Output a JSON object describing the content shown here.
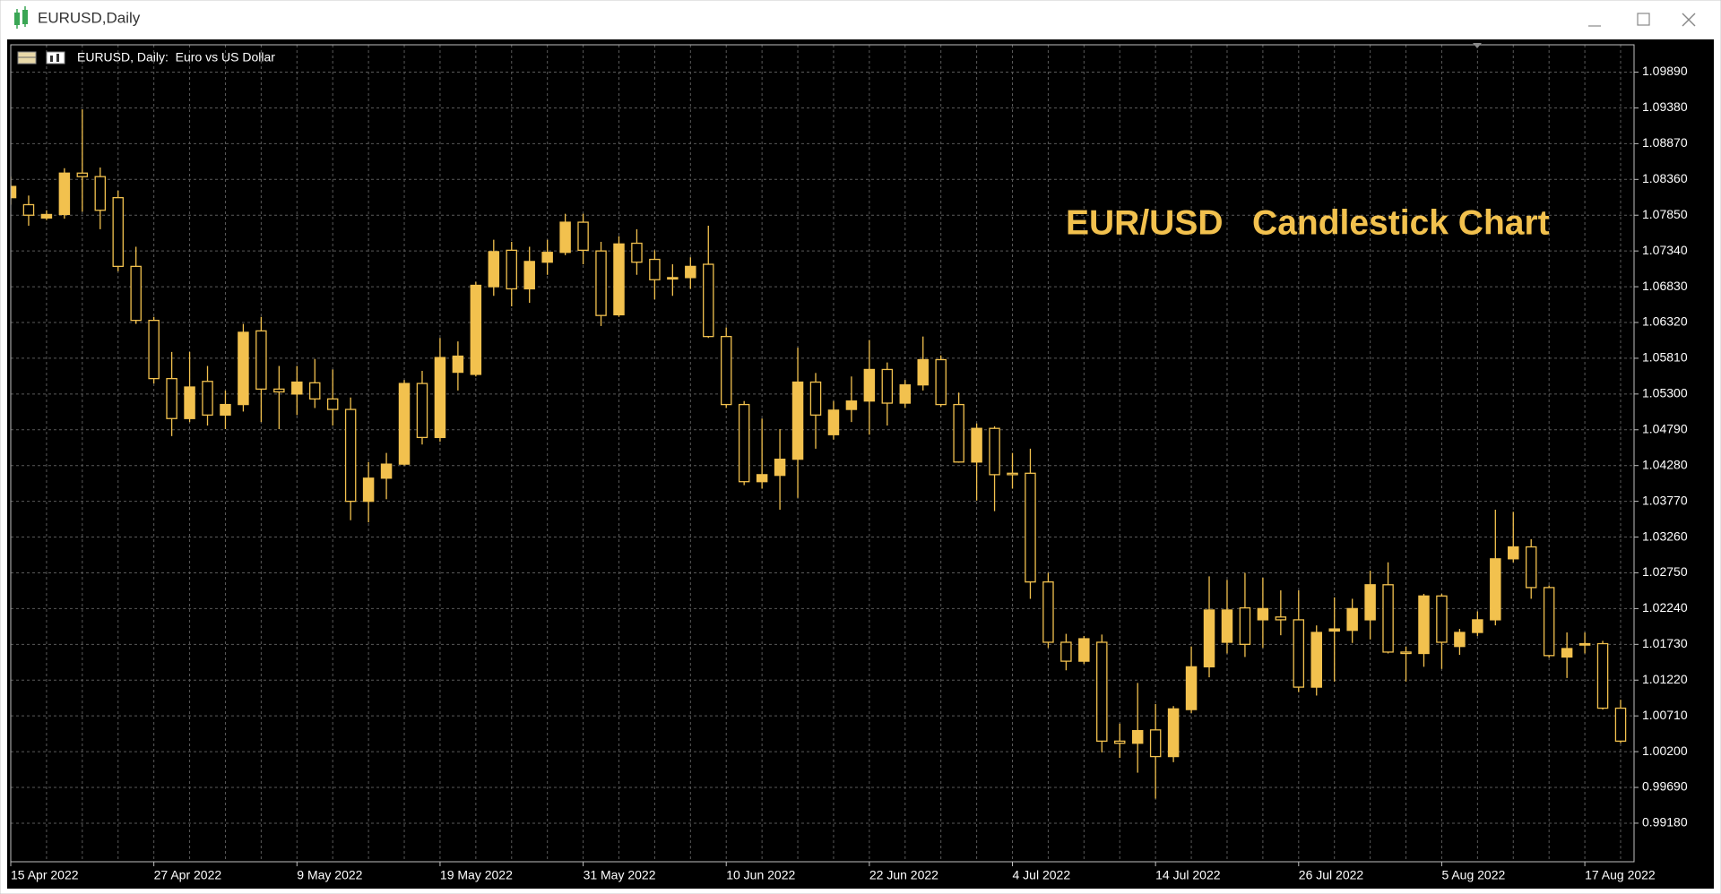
{
  "window_title": "EURUSD,Daily",
  "chart_data": {
    "type": "candlestick",
    "title": "EUR/USD   Candlestick Chart",
    "subtitle": "EURUSD, Daily:  Euro vs US Dollar",
    "color": "#f2c14e",
    "grid": true,
    "categories": [
      "15 Apr 2022",
      null,
      null,
      null,
      null,
      null,
      null,
      null,
      "27 Apr 2022",
      null,
      null,
      null,
      null,
      null,
      null,
      null,
      "9 May 2022",
      null,
      null,
      null,
      null,
      null,
      null,
      null,
      "19 May 2022",
      null,
      null,
      null,
      null,
      null,
      null,
      null,
      "31 May 2022",
      null,
      null,
      null,
      null,
      null,
      null,
      null,
      "10 Jun 2022",
      null,
      null,
      null,
      null,
      null,
      null,
      null,
      "22 Jun 2022",
      null,
      null,
      null,
      null,
      null,
      null,
      null,
      "4 Jul 2022",
      null,
      null,
      null,
      null,
      null,
      null,
      null,
      "14 Jul 2022",
      null,
      null,
      null,
      null,
      null,
      null,
      null,
      "26 Jul 2022",
      null,
      null,
      null,
      null,
      null,
      null,
      null,
      "5 Aug 2022",
      null,
      null,
      null,
      null,
      null,
      null,
      null,
      "17 Aug 2022",
      null,
      null
    ],
    "open": [
      1.081,
      1.08,
      1.0781,
      1.0786,
      1.0845,
      1.084,
      1.081,
      1.0712,
      1.0635,
      1.0552,
      1.0495,
      1.0548,
      1.05,
      1.0515,
      1.062,
      1.0537,
      1.053,
      1.0546,
      1.0523,
      1.0508,
      1.0377,
      1.041,
      1.043,
      1.0545,
      1.0468,
      1.0561,
      1.0558,
      1.0683,
      1.0735,
      1.068,
      1.0718,
      1.0732,
      1.0775,
      1.0734,
      1.0643,
      1.0745,
      1.0722,
      1.0694,
      1.0696,
      1.0715,
      1.0612,
      1.0515,
      1.0405,
      1.0414,
      1.0437,
      1.0547,
      1.0472,
      1.0508,
      1.052,
      1.0565,
      1.0517,
      1.0543,
      1.0579,
      1.0515,
      1.0433,
      1.0481,
      1.0417,
      1.0417,
      1.0262,
      1.0176,
      1.0149,
      1.0176,
      1.0035,
      1.0032,
      1.0051,
      1.0013,
      1.008,
      1.0141,
      1.0176,
      1.0225,
      1.0208,
      1.0212,
      1.0208,
      1.0112,
      1.0192,
      1.0193,
      1.0208,
      1.0258,
      1.0162,
      1.016,
      1.0242,
      1.017,
      1.019,
      1.0208,
      1.0295,
      1.0312,
      1.0254,
      1.0155,
      1.0172,
      1.0174,
      1.0082
    ],
    "high": [
      1.084,
      1.0813,
      1.0792,
      1.0852,
      1.0936,
      1.0853,
      1.082,
      1.074,
      1.064,
      1.059,
      1.059,
      1.057,
      1.0535,
      1.063,
      1.064,
      1.057,
      1.057,
      1.058,
      1.0565,
      1.0525,
      1.0433,
      1.0446,
      1.055,
      1.0563,
      1.061,
      1.0605,
      1.069,
      1.075,
      1.0747,
      1.074,
      1.075,
      1.0787,
      1.0787,
      1.0747,
      1.0755,
      1.0765,
      1.0735,
      1.0715,
      1.0725,
      1.077,
      1.0625,
      1.052,
      1.0495,
      1.048,
      1.0596,
      1.056,
      1.052,
      1.0555,
      1.0607,
      1.0575,
      1.055,
      1.0612,
      1.0585,
      1.0532,
      1.0488,
      1.0484,
      1.0446,
      1.0452,
      1.0275,
      1.0188,
      1.0185,
      1.0187,
      1.006,
      1.0118,
      1.0088,
      1.0085,
      1.017,
      1.027,
      1.0265,
      1.0275,
      1.0268,
      1.025,
      1.025,
      1.02,
      1.024,
      1.0238,
      1.0278,
      1.029,
      1.017,
      1.0245,
      1.0245,
      1.0195,
      1.022,
      1.0365,
      1.0362,
      1.0323,
      1.0257,
      1.019,
      1.019,
      1.0178,
      1.0094
    ],
    "low": [
      1.08,
      1.077,
      1.0778,
      1.078,
      1.079,
      1.0765,
      1.0705,
      1.063,
      1.0545,
      1.047,
      1.049,
      1.0485,
      1.048,
      1.0505,
      1.049,
      1.048,
      1.05,
      1.051,
      1.0485,
      1.035,
      1.0347,
      1.038,
      1.0428,
      1.0458,
      1.0462,
      1.0535,
      1.0555,
      1.067,
      1.0655,
      1.066,
      1.07,
      1.0728,
      1.0715,
      1.0627,
      1.064,
      1.07,
      1.0665,
      1.067,
      1.068,
      1.061,
      1.051,
      1.04,
      1.0395,
      1.0365,
      1.0382,
      1.0452,
      1.0465,
      1.049,
      1.0472,
      1.0485,
      1.051,
      1.0535,
      1.0512,
      1.0432,
      1.0378,
      1.0363,
      1.0395,
      1.0238,
      1.0168,
      1.0136,
      1.0145,
      1.0019,
      1.0011,
      0.999,
      0.9953,
      1.0005,
      1.0075,
      1.0126,
      1.016,
      1.0155,
      1.0168,
      1.0186,
      1.0105,
      1.01,
      1.012,
      1.0175,
      1.018,
      1.016,
      1.012,
      1.0141,
      1.0138,
      1.0158,
      1.0185,
      1.02,
      1.029,
      1.0238,
      1.0154,
      1.0125,
      1.016,
      1.008,
      1.0032
    ],
    "close": [
      1.0826,
      1.0785,
      1.0786,
      1.0845,
      1.084,
      1.0792,
      1.0712,
      1.0635,
      1.0552,
      1.0495,
      1.054,
      1.05,
      1.0515,
      1.0618,
      1.0537,
      1.0533,
      1.0547,
      1.0523,
      1.0508,
      1.0377,
      1.041,
      1.043,
      1.0545,
      1.0468,
      1.0582,
      1.0584,
      1.0685,
      1.0733,
      1.068,
      1.0719,
      1.0732,
      1.0775,
      1.0735,
      1.0642,
      1.0744,
      1.0718,
      1.0693,
      1.0696,
      1.0712,
      1.0612,
      1.0515,
      1.0405,
      1.0415,
      1.0437,
      1.0547,
      1.05,
      1.0507,
      1.052,
      1.0565,
      1.0517,
      1.0543,
      1.0579,
      1.0515,
      1.0433,
      1.0481,
      1.0415,
      1.0415,
      1.0262,
      1.0176,
      1.0149,
      1.0181,
      1.0035,
      1.0032,
      1.005,
      1.0013,
      1.0081,
      1.0141,
      1.0222,
      1.0222,
      1.0173,
      1.0224,
      1.0208,
      1.0112,
      1.019,
      1.0195,
      1.0224,
      1.0258,
      1.0162,
      1.016,
      1.0242,
      1.0176,
      1.019,
      1.0208,
      1.0295,
      1.0312,
      1.0254,
      1.0157,
      1.0167,
      1.0174,
      1.0082,
      1.0035
    ],
    "ylim": [
      0.9863,
      1.1028
    ],
    "yticks": [
      {
        "value": 1.0989,
        "label": "1.09890"
      },
      {
        "value": 1.0938,
        "label": "1.09380"
      },
      {
        "value": 1.0887,
        "label": "1.08870"
      },
      {
        "value": 1.0836,
        "label": "1.08360"
      },
      {
        "value": 1.0785,
        "label": "1.07850"
      },
      {
        "value": 1.0734,
        "label": "1.07340"
      },
      {
        "value": 1.0683,
        "label": "1.06830"
      },
      {
        "value": 1.0632,
        "label": "1.06320"
      },
      {
        "value": 1.0581,
        "label": "1.05810"
      },
      {
        "value": 1.053,
        "label": "1.05300"
      },
      {
        "value": 1.0479,
        "label": "1.04790"
      },
      {
        "value": 1.0428,
        "label": "1.04280"
      },
      {
        "value": 1.0377,
        "label": "1.03770"
      },
      {
        "value": 1.0326,
        "label": "1.03260"
      },
      {
        "value": 1.0275,
        "label": "1.02750"
      },
      {
        "value": 1.0224,
        "label": "1.02240"
      },
      {
        "value": 1.0173,
        "label": "1.01730"
      },
      {
        "value": 1.0122,
        "label": "1.01220"
      },
      {
        "value": 1.0071,
        "label": "1.00710"
      },
      {
        "value": 1.002,
        "label": "1.00200"
      },
      {
        "value": 0.9969,
        "label": "0.99690"
      },
      {
        "value": 0.9918,
        "label": "0.99180"
      }
    ]
  }
}
